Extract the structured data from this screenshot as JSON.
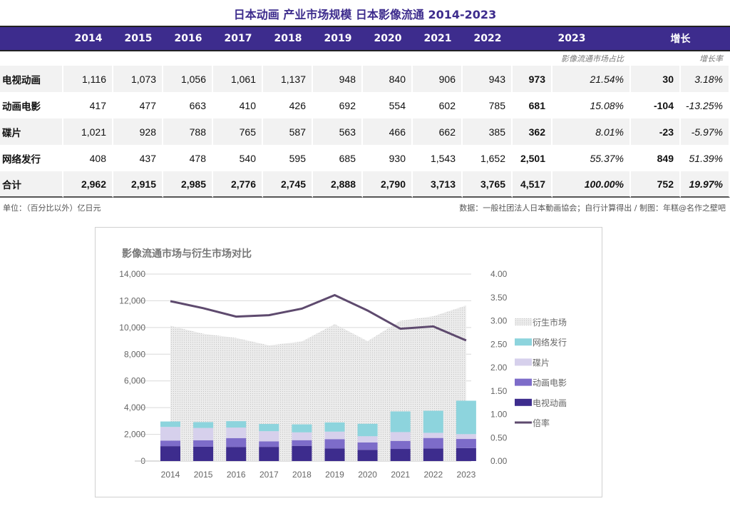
{
  "title": "日本动画 产业市场规模 日本影像流通 2014-2023",
  "table": {
    "years": [
      "2014",
      "2015",
      "2016",
      "2017",
      "2018",
      "2019",
      "2020",
      "2021",
      "2022",
      "2023"
    ],
    "growth_header": "增长",
    "share_label": "影像流通市场占比",
    "growth_rate_label": "增长率",
    "rows": [
      {
        "label": "电视动画",
        "values": [
          "1,116",
          "1,073",
          "1,056",
          "1,061",
          "1,137",
          "948",
          "840",
          "906",
          "943",
          "973"
        ],
        "share": "21.54%",
        "growth": "30",
        "rate": "3.18%"
      },
      {
        "label": "动画电影",
        "values": [
          "417",
          "477",
          "663",
          "410",
          "426",
          "692",
          "554",
          "602",
          "785",
          "681"
        ],
        "share": "15.08%",
        "growth": "-104",
        "rate": "-13.25%"
      },
      {
        "label": "碟片",
        "values": [
          "1,021",
          "928",
          "788",
          "765",
          "587",
          "563",
          "466",
          "662",
          "385",
          "362"
        ],
        "share": "8.01%",
        "growth": "-23",
        "rate": "-5.97%"
      },
      {
        "label": "网络发行",
        "values": [
          "408",
          "437",
          "478",
          "540",
          "595",
          "685",
          "930",
          "1,543",
          "1,652",
          "2,501"
        ],
        "share": "55.37%",
        "growth": "849",
        "rate": "51.39%"
      },
      {
        "label": "合计",
        "values": [
          "2,962",
          "2,915",
          "2,985",
          "2,776",
          "2,745",
          "2,888",
          "2,790",
          "3,713",
          "3,765",
          "4,517"
        ],
        "share": "100.00%",
        "growth": "752",
        "rate": "19.97%"
      }
    ]
  },
  "footer": {
    "unit": "单位：（百分比以外）亿日元",
    "source": "数据：一般社团法人日本動画協会；自行计算得出 / 制图：年糕@名作之壁吧"
  },
  "chart_data": {
    "type": "bar",
    "title": "影像流通市场与衍生市场对比",
    "categories": [
      "2014",
      "2015",
      "2016",
      "2017",
      "2018",
      "2019",
      "2020",
      "2021",
      "2022",
      "2023"
    ],
    "y_left": {
      "range": [
        0,
        14000
      ],
      "ticks": [
        "0",
        "2,000",
        "4,000",
        "6,000",
        "8,000",
        "10,000",
        "12,000",
        "14,000"
      ]
    },
    "y_right": {
      "range": [
        0,
        4
      ],
      "ticks": [
        "0.00",
        "0.50",
        "1.00",
        "1.50",
        "2.00",
        "2.50",
        "3.00",
        "3.50",
        "4.00"
      ]
    },
    "grid": true,
    "legend": "right",
    "series": [
      {
        "name": "衍生市场",
        "type": "area",
        "axis": "left",
        "color": "#e4e4e4",
        "values": [
          10130,
          9530,
          9220,
          8660,
          8950,
          10250,
          8980,
          10510,
          10840,
          11650
        ]
      },
      {
        "name": "网络发行",
        "type": "stacked-bar",
        "axis": "left",
        "color": "#8dd4dd",
        "values": [
          408,
          437,
          478,
          540,
          595,
          685,
          930,
          1543,
          1652,
          2501
        ]
      },
      {
        "name": "碟片",
        "type": "stacked-bar",
        "axis": "left",
        "color": "#d6d0ec",
        "values": [
          1021,
          928,
          788,
          765,
          587,
          563,
          466,
          662,
          385,
          362
        ]
      },
      {
        "name": "动画电影",
        "type": "stacked-bar",
        "axis": "left",
        "color": "#7d6cc9",
        "values": [
          417,
          477,
          663,
          410,
          426,
          692,
          554,
          602,
          785,
          681
        ]
      },
      {
        "name": "电视动画",
        "type": "stacked-bar",
        "axis": "left",
        "color": "#3d2c8d",
        "values": [
          1116,
          1073,
          1056,
          1061,
          1137,
          948,
          840,
          906,
          943,
          973
        ]
      },
      {
        "name": "倍率",
        "type": "line",
        "axis": "right",
        "color": "#5e4a6e",
        "values": [
          3.42,
          3.27,
          3.09,
          3.12,
          3.26,
          3.55,
          3.22,
          2.83,
          2.88,
          2.58
        ]
      }
    ]
  }
}
